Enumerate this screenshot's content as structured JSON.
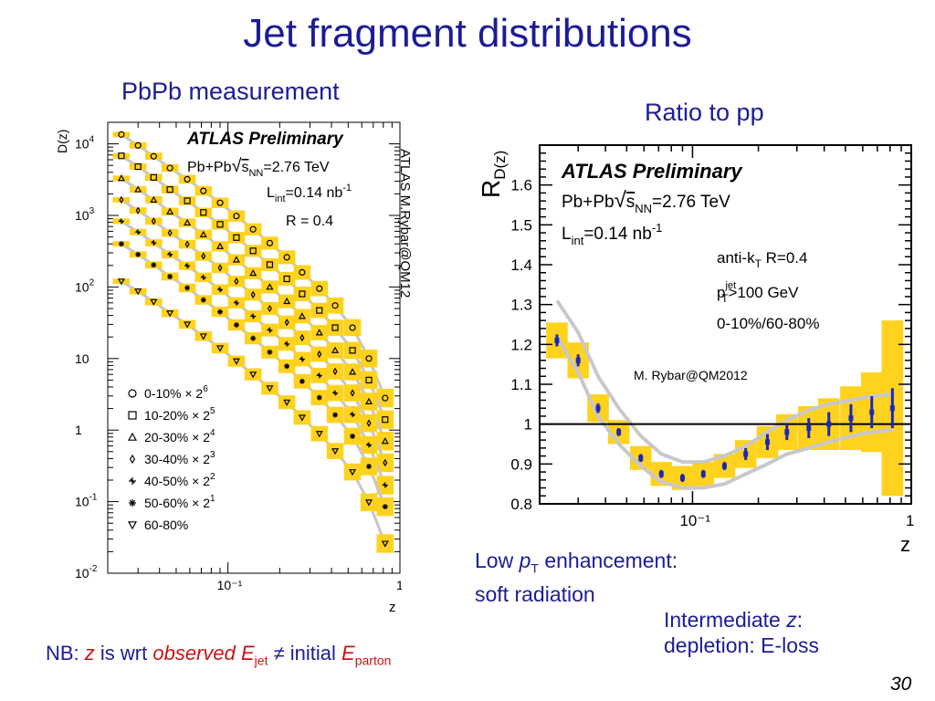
{
  "slide": {
    "title": "Jet fragment distributions",
    "left_subtitle": "PbPb measurement",
    "right_subtitle": "Ratio to pp",
    "page_number": "30",
    "notes": {
      "low_pt_line1_pre": "Low ",
      "low_pt_line1_p": "p",
      "low_pt_line1_sub": "T",
      "low_pt_line1_post": " enhancement:",
      "low_pt_line2": "soft radiation",
      "intermediate_line1_pre": "Intermediate ",
      "intermediate_line1_z": "z",
      "intermediate_line1_post": ":",
      "intermediate_line2": "depletion: E-loss"
    },
    "nb": {
      "prefix": "NB: ",
      "z": "z",
      "is_wrt": " is wrt ",
      "observed": "observed",
      "e1": " E",
      "e1_sub": "jet",
      "neq": " ≠ initial ",
      "e2": "E",
      "e2_sub": "parton"
    },
    "vertical_credit": "ATLAS M.Rybar@QM12"
  },
  "chart_data": [
    {
      "type": "scatter",
      "panel": "left",
      "title": "",
      "xlabel": "z",
      "ylabel": "D(z)",
      "xscale": "log",
      "yscale": "log",
      "xlim": [
        0.02,
        1.0
      ],
      "ylim": [
        0.01,
        20000
      ],
      "x_tick_labels": [
        "10⁻¹",
        "1"
      ],
      "y_tick_labels": [
        {
          "b": "10",
          "e": "4",
          "v": 10000
        },
        {
          "b": "10",
          "e": "3",
          "v": 1000
        },
        {
          "b": "10",
          "e": "2",
          "v": 100
        },
        {
          "b": "10",
          "e": "",
          "v": 10
        },
        {
          "b": "1",
          "e": "",
          "v": 1
        },
        {
          "b": "10",
          "e": "-1",
          "v": 0.1
        },
        {
          "b": "10",
          "e": "-2",
          "v": 0.01
        }
      ],
      "annotations": {
        "atlas": "ATLAS Preliminary",
        "system_pre": "Pb+Pb",
        "s": "s",
        "s_sub": "NN",
        "energy": "=2.76 TeV",
        "lumi_pre": "L",
        "lumi_sub": "int",
        "lumi_val": "=0.14 nb",
        "lumi_exp": "-1",
        "radius": "R = 0.4"
      },
      "legend_position": "bottom-left",
      "colors": {
        "band": "#ffd21e",
        "curve": "#c8c8c8",
        "marker": "#000000"
      },
      "x": [
        0.024,
        0.03,
        0.037,
        0.046,
        0.058,
        0.072,
        0.09,
        0.112,
        0.14,
        0.175,
        0.22,
        0.27,
        0.34,
        0.42,
        0.53,
        0.66,
        0.82
      ],
      "series": [
        {
          "name": "0-10% × 2",
          "exp": "6",
          "marker": "circle",
          "values": [
            13500,
            9500,
            6700,
            4600,
            3200,
            2200,
            1500,
            980,
            640,
            410,
            260,
            160,
            95,
            55,
            27,
            10,
            2.8
          ]
        },
        {
          "name": "10-20% × 2",
          "exp": "5",
          "marker": "square",
          "values": [
            6800,
            4800,
            3400,
            2300,
            1600,
            1100,
            750,
            490,
            320,
            205,
            130,
            80,
            47,
            27,
            13,
            5,
            1.4
          ]
        },
        {
          "name": "20-30% × 2",
          "exp": "4",
          "marker": "triangle",
          "values": [
            3300,
            2300,
            1650,
            1130,
            790,
            540,
            370,
            240,
            156,
            100,
            63,
            39,
            23,
            13,
            6.5,
            2.5,
            0.7
          ]
        },
        {
          "name": "30-40% × 2",
          "exp": "3",
          "marker": "diamond",
          "values": [
            1650,
            1170,
            830,
            570,
            395,
            270,
            185,
            120,
            78,
            50,
            32,
            19.5,
            11.5,
            6.6,
            3.3,
            1.25,
            0.35
          ]
        },
        {
          "name": "40-50% × 2",
          "exp": "2",
          "marker": "cross",
          "values": [
            830,
            585,
            415,
            285,
            198,
            136,
            92,
            60,
            39,
            25,
            16,
            9.8,
            5.8,
            3.3,
            1.65,
            0.62,
            0.17
          ]
        },
        {
          "name": "50-60% × 2",
          "exp": "1",
          "marker": "star",
          "values": [
            400,
            285,
            203,
            140,
            97,
            66,
            45,
            29.5,
            19.2,
            12.3,
            7.8,
            4.8,
            2.85,
            1.63,
            0.82,
            0.31,
            0.085
          ]
        },
        {
          "name": "60-80%",
          "exp": "",
          "marker": "triangle-down",
          "values": [
            120,
            87,
            62,
            43,
            30,
            20.5,
            14,
            9.2,
            6,
            3.85,
            2.45,
            1.5,
            0.89,
            0.51,
            0.26,
            0.098,
            0.026
          ]
        }
      ]
    },
    {
      "type": "scatter",
      "panel": "right",
      "title": "",
      "xlabel": "z",
      "ylabel_main": "R",
      "ylabel_sub": "D(z)",
      "xscale": "log",
      "xlim": [
        0.02,
        1.0
      ],
      "ylim": [
        0.8,
        1.7
      ],
      "y_ticks": [
        0.8,
        0.9,
        1,
        1.1,
        1.2,
        1.3,
        1.4,
        1.5,
        1.6
      ],
      "y_tick_labels": [
        "0.8",
        "0.9",
        "1",
        "1.1",
        "1.2",
        "1.3",
        "1.4",
        "1.5",
        "1.6"
      ],
      "x_tick_labels": [
        "10⁻¹",
        "1"
      ],
      "reference_line": 1,
      "annotations": {
        "atlas": "ATLAS Preliminary",
        "system_pre": "Pb+Pb",
        "s": "s",
        "s_sub": "NN",
        "energy": "=2.76 TeV",
        "lumi_pre": "L",
        "lumi_sub": "int",
        "lumi_val": "=0.14 nb",
        "lumi_exp": "-1",
        "algo_pre": "anti-k",
        "algo_sub": "T",
        "algo_post": " R=0.4",
        "pt_pre": "p",
        "pt_sup": "jet",
        "pt_sub": "T",
        "pt_post": ">100 GeV",
        "centrality": "0-10%/60-80%",
        "credit": "M. Rybar@QM2012"
      },
      "colors": {
        "band": "#ffd21e",
        "curve": "#c8c8c8",
        "marker": "#1e28b4",
        "reference": "#000000"
      },
      "x": [
        0.024,
        0.03,
        0.037,
        0.046,
        0.058,
        0.072,
        0.09,
        0.112,
        0.14,
        0.175,
        0.22,
        0.27,
        0.34,
        0.42,
        0.53,
        0.66,
        0.82
      ],
      "values": [
        1.21,
        1.16,
        1.04,
        0.98,
        0.915,
        0.875,
        0.865,
        0.875,
        0.895,
        0.925,
        0.955,
        0.98,
        0.99,
        1.0,
        1.015,
        1.03,
        1.04
      ],
      "stat_err": [
        0.015,
        0.015,
        0.012,
        0.01,
        0.01,
        0.01,
        0.01,
        0.01,
        0.01,
        0.015,
        0.02,
        0.02,
        0.025,
        0.03,
        0.035,
        0.04,
        0.05
      ],
      "sys_err": [
        0.045,
        0.045,
        0.035,
        0.03,
        0.03,
        0.03,
        0.03,
        0.03,
        0.03,
        0.035,
        0.04,
        0.045,
        0.055,
        0.065,
        0.08,
        0.1,
        0.22
      ],
      "curve_upper": [
        1.31,
        1.23,
        1.12,
        1.04,
        0.97,
        0.925,
        0.905,
        0.905,
        0.92,
        0.945,
        0.98,
        1.01,
        1.035,
        1.05,
        1.06,
        1.07,
        1.075
      ],
      "curve_lower": [
        1.22,
        1.13,
        1.02,
        0.95,
        0.895,
        0.855,
        0.84,
        0.84,
        0.85,
        0.875,
        0.9,
        0.925,
        0.94,
        0.955,
        0.97,
        0.98,
        0.985
      ]
    }
  ]
}
